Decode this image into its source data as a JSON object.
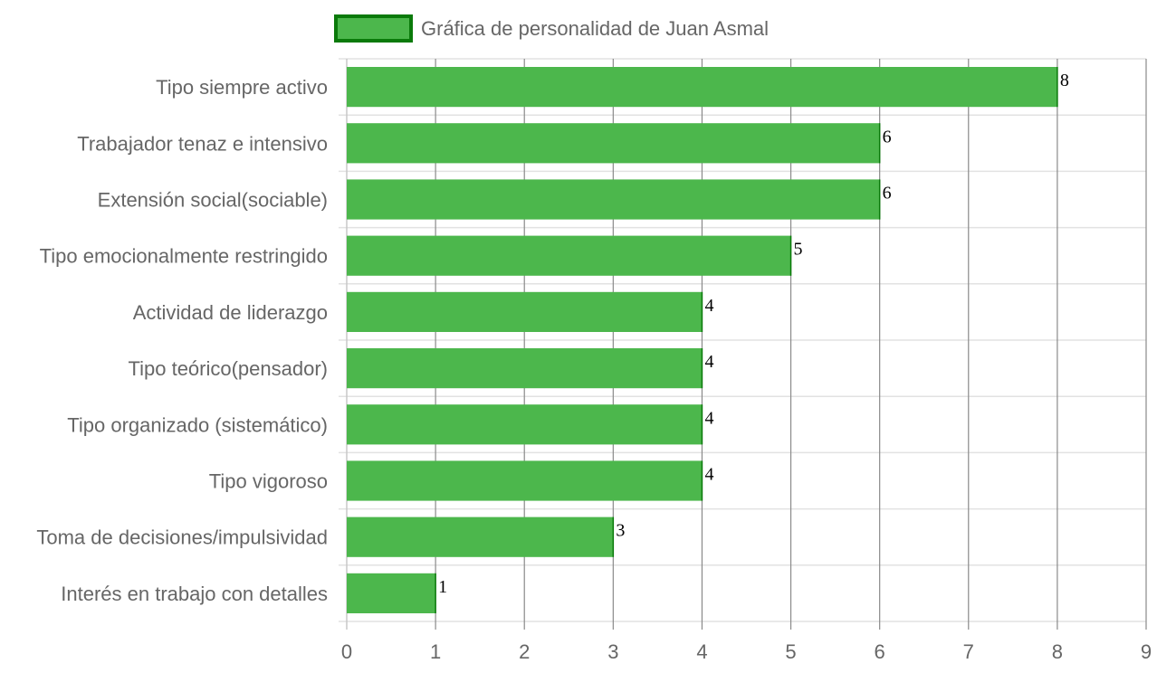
{
  "chart_data": {
    "type": "bar",
    "orientation": "horizontal",
    "legend": {
      "label": "Gráfica de personalidad de Juan Asmal",
      "position": "top"
    },
    "categories": [
      "Tipo siempre activo",
      "Trabajador tenaz e intensivo",
      "Extensión social(sociable)",
      "Tipo emocionalmente restringido",
      "Actividad de liderazgo",
      "Tipo teórico(pensador)",
      "Tipo organizado (sistemático)",
      "Tipo vigoroso",
      "Toma de decisiones/impulsividad",
      "Interés en trabajo con detalles"
    ],
    "series": [
      {
        "name": "Gráfica de personalidad de Juan Asmal",
        "values": [
          8,
          6,
          6,
          5,
          4,
          4,
          4,
          4,
          3,
          1
        ],
        "color": "#4cb74c",
        "border_color": "#0a7a0a"
      }
    ],
    "xlim": [
      0,
      9
    ],
    "x_ticks": [
      "0",
      "1",
      "2",
      "3",
      "4",
      "5",
      "6",
      "7",
      "8",
      "9"
    ],
    "grid": true,
    "data_labels": true,
    "title": "",
    "xlabel": "",
    "ylabel": ""
  }
}
